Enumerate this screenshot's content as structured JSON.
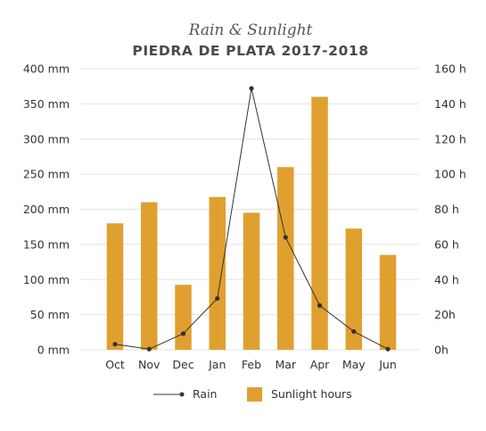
{
  "chart_data": {
    "type": "bar",
    "subtitle": "Rain & Sunlight",
    "title": "PIEDRA DE PLATA 2017-2018",
    "categories": [
      "Oct",
      "Nov",
      "Dec",
      "Jan",
      "Feb",
      "Mar",
      "Apr",
      "May",
      "Jun"
    ],
    "series": [
      {
        "name": "Sunlight hours",
        "type": "bar",
        "axis": "right",
        "values": [
          72,
          84,
          37,
          87,
          78,
          104,
          144,
          69,
          54
        ]
      },
      {
        "name": "Rain",
        "type": "line",
        "axis": "left",
        "values": [
          8,
          1,
          23,
          73,
          372,
          160,
          63,
          26,
          1
        ]
      }
    ],
    "y_left": {
      "ylim": [
        0,
        400
      ],
      "ticks": [
        "0 mm",
        "50 mm",
        "100 mm",
        "150 mm",
        "200 mm",
        "250 mm",
        "300 mm",
        "350 mm",
        "400 mm"
      ]
    },
    "y_right": {
      "ylim": [
        0,
        160
      ],
      "ticks": [
        "0h",
        "20h",
        "40 h",
        "60 h",
        "80 h",
        "100 h",
        "120 h",
        "140 h",
        "160 h"
      ]
    },
    "grid": true,
    "legend_position": "bottom",
    "colors": {
      "bar": "#e0a02f",
      "line": "#333333",
      "grid": "#e3e3e3"
    }
  }
}
